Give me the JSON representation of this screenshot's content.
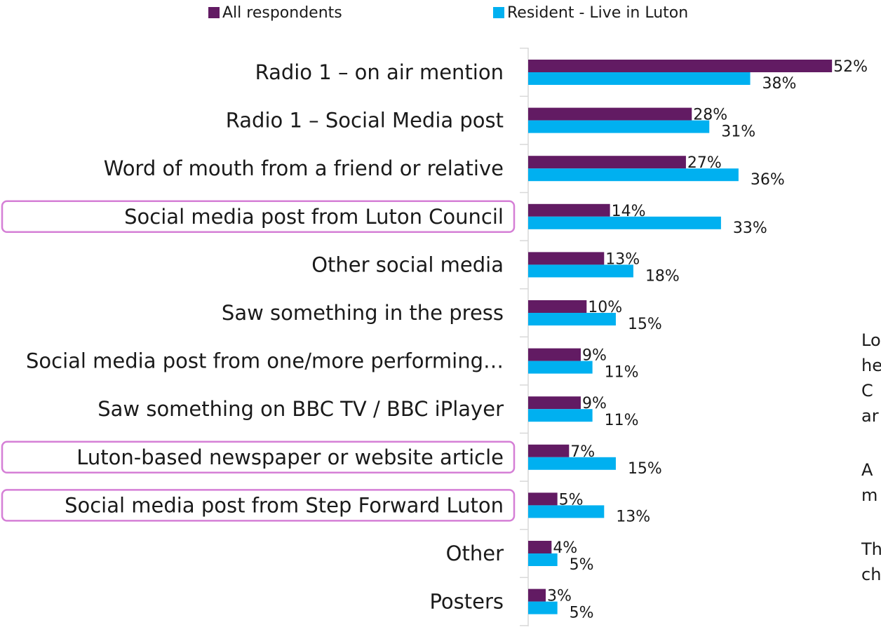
{
  "colors": {
    "all_respondents": "#621b63",
    "resident": "#00b0f0",
    "highlight_box": "#d57fd6",
    "axis": "#d9d9d9"
  },
  "legend": {
    "all_label": "All respondents",
    "resident_label": "Resident - Live in Luton"
  },
  "side_note": {
    "fragments": [
      "Lo",
      "he",
      "C",
      "ar",
      "A",
      "m",
      "Th",
      "ch"
    ]
  },
  "chart_data": {
    "type": "bar",
    "orientation": "horizontal",
    "xlim": [
      0,
      55
    ],
    "grid": false,
    "legend_position": "top",
    "value_format": "percent",
    "categories": [
      "Radio 1 – on air mention",
      "Radio 1 – Social Media post",
      "Word of mouth from a friend or relative",
      "Social media post from Luton  Council",
      "Other social media",
      "Saw something in the press",
      "Social media post from one/more performing…",
      "Saw something on BBC TV / BBC iPlayer",
      "Luton-based newspaper or website article",
      "Social media post from Step Forward Luton",
      "Other",
      "Posters"
    ],
    "highlighted_categories": [
      "Social media post from Luton  Council",
      "Luton-based newspaper or website article",
      "Social media post from Step Forward Luton"
    ],
    "series": [
      {
        "name": "All respondents",
        "values": [
          52,
          28,
          27,
          14,
          13,
          10,
          9,
          9,
          7,
          5,
          4,
          3
        ]
      },
      {
        "name": "Resident - Live in Luton",
        "values": [
          38,
          31,
          36,
          33,
          18,
          15,
          11,
          11,
          15,
          13,
          5,
          5
        ]
      }
    ]
  }
}
